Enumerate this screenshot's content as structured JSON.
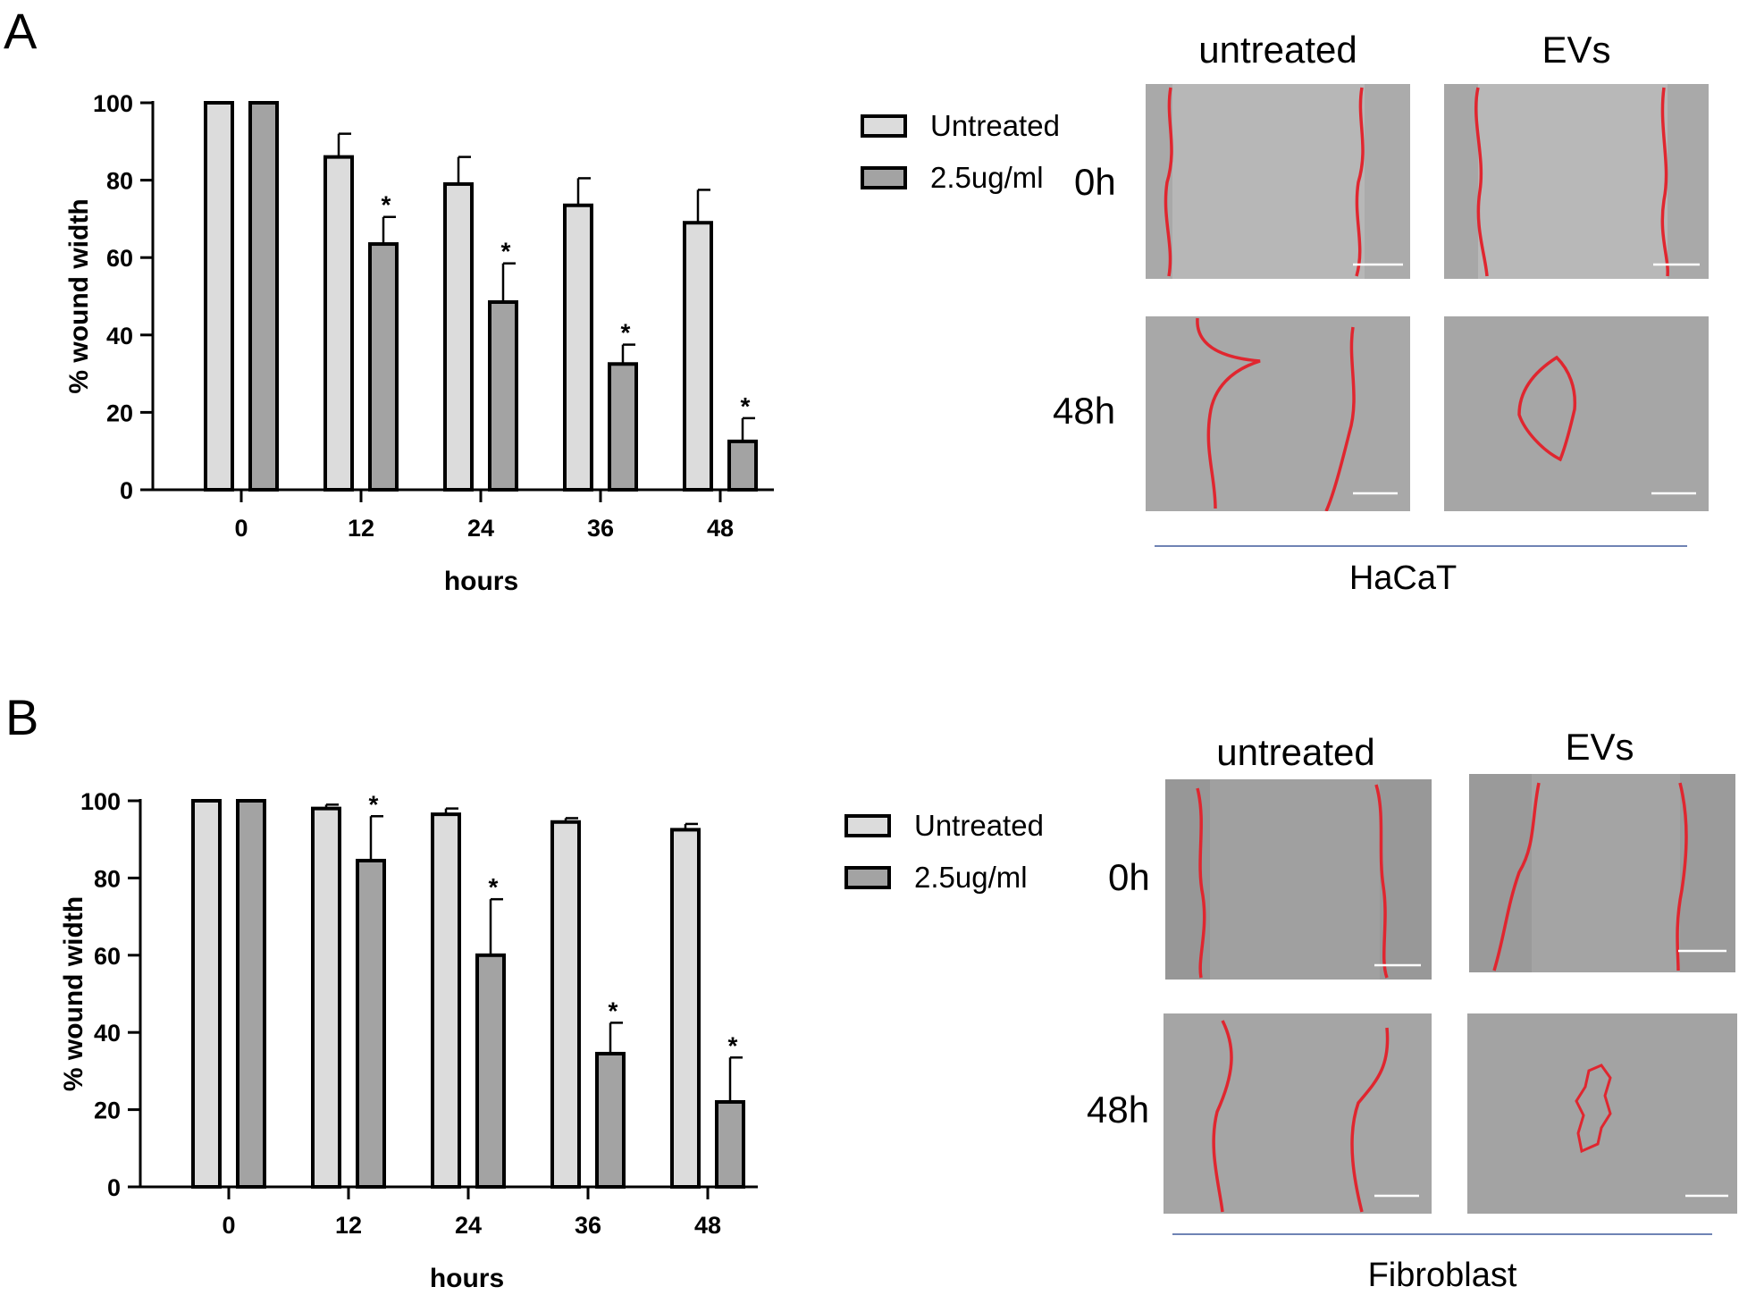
{
  "panels": [
    {
      "letter": "A",
      "cell_type": "HaCaT",
      "columns": [
        "untreated",
        "EVs"
      ],
      "rows": [
        "0h",
        "48h"
      ],
      "legend": [
        {
          "label": "Untreated",
          "color": "#dcdcdc"
        },
        {
          "label": "2.5ug/ml",
          "color": "#a3a3a3"
        }
      ]
    },
    {
      "letter": "B",
      "cell_type": "Fibroblast",
      "columns": [
        "untreated",
        "EVs"
      ],
      "rows": [
        "0h",
        "48h"
      ],
      "legend": [
        {
          "label": "Untreated",
          "color": "#dcdcdc"
        },
        {
          "label": "2.5ug/ml",
          "color": "#a3a3a3"
        }
      ]
    }
  ],
  "chart_data": [
    {
      "type": "bar",
      "title": "",
      "xlabel": "hours",
      "ylabel": "% wound width",
      "categories": [
        "0",
        "12",
        "24",
        "36",
        "48"
      ],
      "ylim": [
        0,
        100
      ],
      "yticks": [
        "0",
        "20",
        "40",
        "60",
        "80",
        "100"
      ],
      "series": [
        {
          "name": "Untreated",
          "color": "#dcdcdc",
          "values": [
            100,
            86,
            79,
            73.5,
            69
          ],
          "errors": [
            0,
            6,
            7,
            7,
            8.5
          ]
        },
        {
          "name": "2.5ug/ml",
          "color": "#a3a3a3",
          "values": [
            100,
            63.5,
            48.5,
            32.5,
            12.5
          ],
          "errors": [
            0,
            7,
            10,
            5,
            6
          ],
          "significance": [
            "",
            "*",
            "*",
            "*",
            "*"
          ]
        }
      ]
    },
    {
      "type": "bar",
      "title": "",
      "xlabel": "hours",
      "ylabel": "% wound width",
      "categories": [
        "0",
        "12",
        "24",
        "36",
        "48"
      ],
      "ylim": [
        0,
        100
      ],
      "yticks": [
        "0",
        "20",
        "40",
        "60",
        "80",
        "100"
      ],
      "series": [
        {
          "name": "Untreated",
          "color": "#dcdcdc",
          "values": [
            100,
            98,
            96.5,
            94.5,
            92.5
          ],
          "errors": [
            0,
            1,
            1.5,
            1,
            1.5
          ]
        },
        {
          "name": "2.5ug/ml",
          "color": "#a3a3a3",
          "values": [
            100,
            84.5,
            60,
            34.5,
            22
          ],
          "errors": [
            0,
            11.5,
            14.5,
            8,
            11.5
          ],
          "significance": [
            "",
            "*",
            "*",
            "*",
            "*"
          ]
        }
      ]
    }
  ]
}
